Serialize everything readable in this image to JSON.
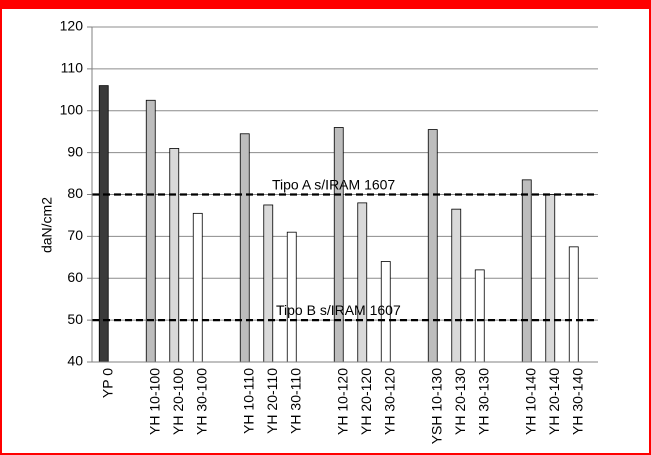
{
  "chart_data": {
    "type": "bar",
    "ylabel": "daN/cm2",
    "ylim": [
      40,
      120
    ],
    "yticks": [
      40,
      50,
      60,
      70,
      80,
      90,
      100,
      110,
      120
    ],
    "grid": true,
    "groups": [
      {
        "bars": [
          {
            "label": "YP 0",
            "value": 106,
            "shade": "dark"
          }
        ]
      },
      {
        "bars": [
          {
            "label": "YH 10-100",
            "value": 102.5,
            "shade": "gray"
          },
          {
            "label": "YH 20-100",
            "value": 91,
            "shade": "light"
          },
          {
            "label": "YH 30-100",
            "value": 75.5,
            "shade": "white"
          }
        ]
      },
      {
        "bars": [
          {
            "label": "YH 10-110",
            "value": 94.5,
            "shade": "gray"
          },
          {
            "label": "YH 20-110",
            "value": 77.5,
            "shade": "light"
          },
          {
            "label": "YH 30-110",
            "value": 71,
            "shade": "white"
          }
        ]
      },
      {
        "bars": [
          {
            "label": "YH 10-120",
            "value": 96,
            "shade": "gray"
          },
          {
            "label": "YH 20-120",
            "value": 78,
            "shade": "light"
          },
          {
            "label": "YH 30-120",
            "value": 64,
            "shade": "white"
          }
        ]
      },
      {
        "bars": [
          {
            "label": "YSH 10-130",
            "value": 95.5,
            "shade": "gray"
          },
          {
            "label": "YH 20-130",
            "value": 76.5,
            "shade": "light"
          },
          {
            "label": "YH 30-130",
            "value": 62,
            "shade": "white"
          }
        ]
      },
      {
        "bars": [
          {
            "label": "YH 10-140",
            "value": 83.5,
            "shade": "gray"
          },
          {
            "label": "YH 20-140",
            "value": 80,
            "shade": "light"
          },
          {
            "label": "YH 30-140",
            "value": 67.5,
            "shade": "white"
          }
        ]
      }
    ],
    "reference_lines": [
      {
        "value": 80,
        "label": "Tipo A s/IRAM 1607"
      },
      {
        "value": 50,
        "label": "Tipo B s/IRAM 1607"
      }
    ],
    "colors": {
      "dark": "#3a3a3a",
      "gray": "#bdbdbd",
      "light": "#d9d9d9",
      "white": "#ffffff",
      "outline": "#000000",
      "grid": "#8c8c8c",
      "frame": "#ff0000"
    }
  }
}
